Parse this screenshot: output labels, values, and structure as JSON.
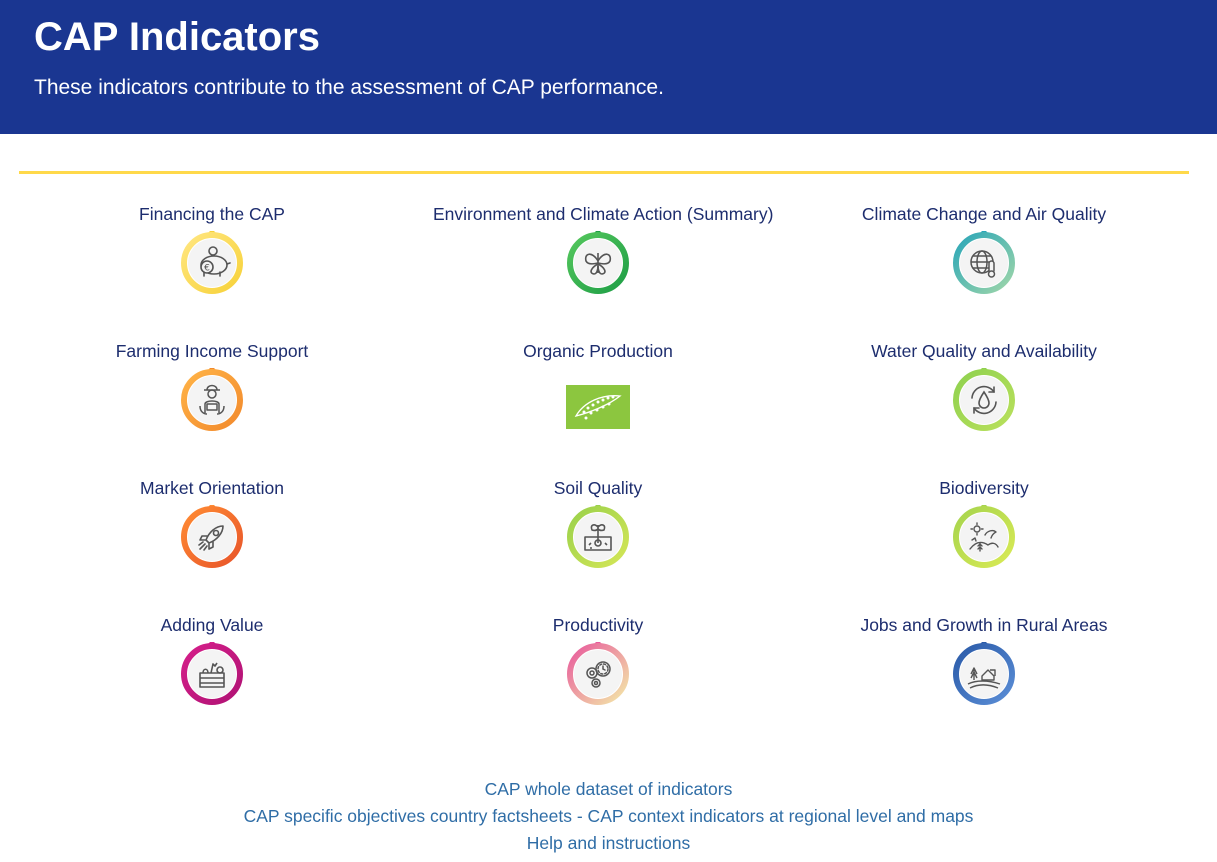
{
  "header": {
    "title": "CAP Indicators",
    "subtitle": "These indicators contribute to the assessment of CAP performance."
  },
  "indicators": [
    {
      "label": "Financing the CAP",
      "icon": "piggy-bank-euro-icon",
      "colors": [
        "#ffe680",
        "#f7d23a"
      ]
    },
    {
      "label": "Environment and Climate Action (Summary)",
      "icon": "butterfly-icon",
      "colors": [
        "#55c75d",
        "#1e9e46"
      ]
    },
    {
      "label": "Climate Change and Air Quality",
      "icon": "globe-thermometer-icon",
      "colors": [
        "#2aa6b8",
        "#9fd6a9"
      ]
    },
    {
      "label": "Farming Income Support",
      "icon": "farmer-icon",
      "colors": [
        "#ffb347",
        "#f28a2c"
      ]
    },
    {
      "label": "Organic Production",
      "icon": "eu-organic-leaf-logo",
      "colors": [
        "#8cc63f",
        "#6fb02e"
      ]
    },
    {
      "label": "Water Quality and Availability",
      "icon": "water-drop-cycle-icon",
      "colors": [
        "#8fd14f",
        "#b9e05c"
      ]
    },
    {
      "label": "Market Orientation",
      "icon": "rocket-icon",
      "colors": [
        "#ff8b33",
        "#e8552a"
      ]
    },
    {
      "label": "Soil Quality",
      "icon": "sprout-soil-icon",
      "colors": [
        "#9ad14b",
        "#d4e657"
      ]
    },
    {
      "label": "Biodiversity",
      "icon": "biodiversity-landscape-icon",
      "colors": [
        "#a6d44e",
        "#d9ea55"
      ]
    },
    {
      "label": "Adding Value",
      "icon": "produce-crate-icon",
      "colors": [
        "#d51f8a",
        "#b01274"
      ]
    },
    {
      "label": "Productivity",
      "icon": "gears-clock-icon",
      "colors": [
        "#e85a9c",
        "#f3e9a8"
      ]
    },
    {
      "label": "Jobs and Growth in Rural Areas",
      "icon": "rural-farm-icon",
      "colors": [
        "#2a5aa8",
        "#5b8ed6"
      ]
    }
  ],
  "links": [
    "CAP whole dataset of indicators",
    "CAP specific objectives country factsheets - CAP context indicators at regional level and maps",
    "Help and instructions"
  ],
  "colors": {
    "banner": "#1a3691",
    "accent_rule": "#ffd94a",
    "title_text": "#1d2d6e",
    "link_text": "#2f6da6"
  }
}
